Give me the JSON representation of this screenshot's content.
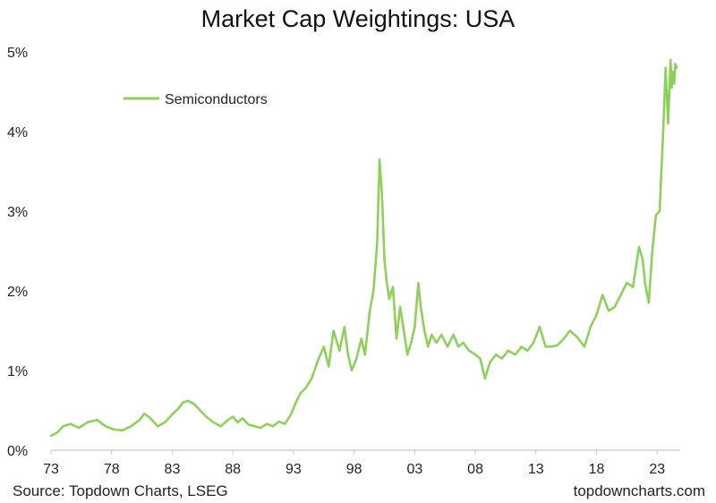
{
  "chart_data": {
    "type": "line",
    "title": "Market Cap Weightings: USA",
    "xlabel": "",
    "ylabel": "",
    "x_ticks": [
      "73",
      "78",
      "83",
      "88",
      "93",
      "98",
      "03",
      "08",
      "13",
      "18",
      "23"
    ],
    "y_ticks": [
      "0%",
      "1%",
      "2%",
      "3%",
      "4%",
      "5%"
    ],
    "xlim": [
      1973,
      2024.9
    ],
    "ylim": [
      0,
      5
    ],
    "grid": false,
    "legend_position": "top-left",
    "series": [
      {
        "name": "Semiconductors",
        "color": "#8ed15a",
        "x": [
          1973.0,
          1973.5,
          1974.0,
          1974.6,
          1975.3,
          1976.0,
          1976.8,
          1977.5,
          1978.2,
          1978.9,
          1979.6,
          1980.3,
          1980.7,
          1981.2,
          1981.8,
          1982.4,
          1983.0,
          1983.5,
          1983.9,
          1984.3,
          1984.8,
          1985.3,
          1985.8,
          1986.4,
          1987.0,
          1987.6,
          1988.0,
          1988.4,
          1988.8,
          1989.3,
          1989.8,
          1990.3,
          1990.8,
          1991.3,
          1991.8,
          1992.3,
          1992.8,
          1993.2,
          1993.6,
          1994.0,
          1994.5,
          1995.0,
          1995.5,
          1995.9,
          1996.3,
          1996.8,
          1997.2,
          1997.5,
          1997.8,
          1998.2,
          1998.6,
          1998.9,
          1999.3,
          1999.6,
          1999.9,
          2000.1,
          2000.3,
          2000.5,
          2000.7,
          2000.9,
          2001.2,
          2001.5,
          2001.8,
          2002.1,
          2002.4,
          2002.7,
          2003.0,
          2003.3,
          2003.5,
          2003.8,
          2004.1,
          2004.4,
          2004.8,
          2005.2,
          2005.7,
          2006.2,
          2006.6,
          2007.0,
          2007.5,
          2008.0,
          2008.4,
          2008.8,
          2009.2,
          2009.7,
          2010.2,
          2010.7,
          2011.3,
          2011.8,
          2012.3,
          2012.8,
          2013.3,
          2013.8,
          2014.3,
          2014.8,
          2015.3,
          2015.8,
          2016.4,
          2017.0,
          2017.5,
          2018.0,
          2018.5,
          2019.0,
          2019.5,
          2020.0,
          2020.5,
          2021.0,
          2021.5,
          2021.8,
          2022.0,
          2022.3,
          2022.6,
          2022.9,
          2023.2,
          2023.5,
          2023.7,
          2023.9,
          2024.1,
          2024.2,
          2024.3,
          2024.4,
          2024.5,
          2024.6
        ],
        "y": [
          0.18,
          0.22,
          0.3,
          0.33,
          0.28,
          0.35,
          0.38,
          0.3,
          0.26,
          0.25,
          0.3,
          0.38,
          0.46,
          0.4,
          0.3,
          0.35,
          0.45,
          0.52,
          0.6,
          0.62,
          0.58,
          0.5,
          0.42,
          0.35,
          0.3,
          0.38,
          0.42,
          0.35,
          0.4,
          0.32,
          0.3,
          0.28,
          0.33,
          0.3,
          0.36,
          0.33,
          0.45,
          0.6,
          0.72,
          0.78,
          0.9,
          1.12,
          1.3,
          1.05,
          1.5,
          1.25,
          1.55,
          1.2,
          1.0,
          1.15,
          1.4,
          1.2,
          1.75,
          2.0,
          2.6,
          3.65,
          3.2,
          2.4,
          2.1,
          1.9,
          2.05,
          1.4,
          1.8,
          1.5,
          1.2,
          1.35,
          1.55,
          2.1,
          1.8,
          1.5,
          1.3,
          1.45,
          1.35,
          1.45,
          1.3,
          1.45,
          1.3,
          1.35,
          1.25,
          1.2,
          1.15,
          0.9,
          1.1,
          1.2,
          1.15,
          1.25,
          1.2,
          1.3,
          1.25,
          1.35,
          1.55,
          1.3,
          1.3,
          1.32,
          1.4,
          1.5,
          1.42,
          1.3,
          1.55,
          1.7,
          1.95,
          1.75,
          1.8,
          1.95,
          2.1,
          2.05,
          2.55,
          2.4,
          2.1,
          1.85,
          2.5,
          2.95,
          3.0,
          4.0,
          4.8,
          4.1,
          4.9,
          4.55,
          4.75,
          4.6,
          4.85,
          4.8
        ]
      }
    ]
  },
  "footer": {
    "source": "Source: Topdown Charts, LSEG",
    "brand": "topdowncharts.com"
  }
}
